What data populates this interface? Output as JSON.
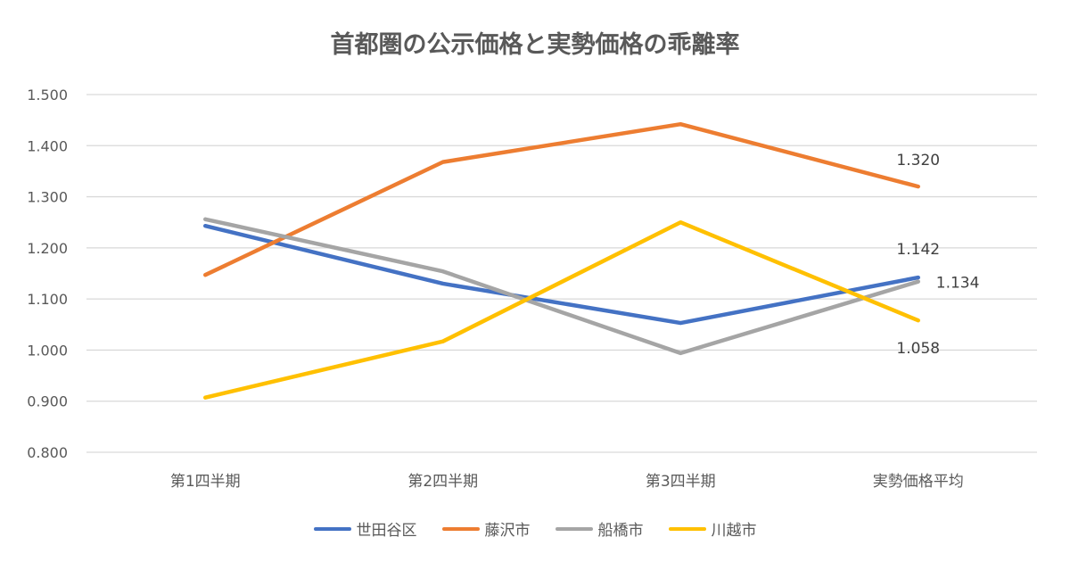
{
  "chart_data": {
    "type": "line",
    "title": "首都圏の公示価格と実勢価格の乖離率",
    "categories": [
      "第1四半期",
      "第2四半期",
      "第3四半期",
      "実勢価格平均"
    ],
    "ylim": [
      0.8,
      1.5
    ],
    "yticks": [
      "0.800",
      "0.900",
      "1.000",
      "1.100",
      "1.200",
      "1.300",
      "1.400",
      "1.500"
    ],
    "grid": true,
    "legend": "bottom",
    "series": [
      {
        "name": "世田谷区",
        "color": "#4472C4",
        "values": [
          1.243,
          1.13,
          1.053,
          1.142
        ],
        "last_label": "1.142"
      },
      {
        "name": "藤沢市",
        "color": "#ED7D31",
        "values": [
          1.147,
          1.368,
          1.442,
          1.32
        ],
        "last_label": "1.320"
      },
      {
        "name": "船橋市",
        "color": "#A5A5A5",
        "values": [
          1.256,
          1.154,
          0.994,
          1.134
        ],
        "last_label": "1.134"
      },
      {
        "name": "川越市",
        "color": "#FFC000",
        "values": [
          0.907,
          1.017,
          1.25,
          1.058
        ],
        "last_label": "1.058"
      }
    ]
  }
}
